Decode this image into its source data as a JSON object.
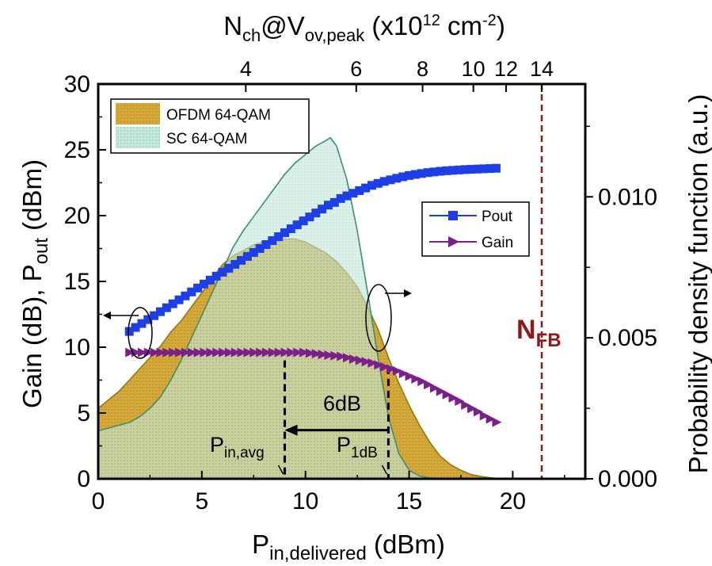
{
  "chart_data": {
    "type": "line",
    "x_axis": {
      "label_main": "P",
      "label_sub": "in,delivered",
      "label_unit": " (dBm)",
      "range": [
        0,
        23.5
      ],
      "ticks": [
        0,
        5,
        10,
        15,
        20
      ]
    },
    "y_axis_left": {
      "label_a": "Gain (dB), P",
      "label_sub": "out",
      "label_b": " (dBm)",
      "range": [
        0,
        30
      ],
      "ticks": [
        0,
        5,
        10,
        15,
        20,
        25,
        30
      ]
    },
    "y_axis_right": {
      "label": "Probability density function (a.u.)",
      "range": [
        0,
        0.014
      ],
      "ticks": [
        0.0,
        0.005,
        0.01
      ],
      "tick_labels": [
        "0.000",
        "0.005",
        "0.010"
      ]
    },
    "x_axis_top": {
      "label_n": "N",
      "label_n_sub": "ch",
      "label_at": "@V",
      "label_v_sub": "ov,peak",
      "label_unit_a": " (x10",
      "label_unit_exp": "12",
      "label_unit_b": " cm",
      "label_unit_exp2": "-2",
      "label_unit_c": ")",
      "ticks": [
        {
          "label": "4",
          "x": 7.12
        },
        {
          "label": "6",
          "x": 12.45
        },
        {
          "label": "8",
          "x": 15.65
        },
        {
          "label": "10",
          "x": 18.1
        },
        {
          "label": "12",
          "x": 19.68
        },
        {
          "label": "14",
          "x": 21.4
        }
      ]
    },
    "series": [
      {
        "name": "Pout",
        "color": "#1f3fe6",
        "marker": "square",
        "axis": "left",
        "x": [
          1.5,
          1.8,
          2.1,
          2.4,
          2.7,
          3.0,
          3.3,
          3.6,
          3.9,
          4.2,
          4.5,
          4.8,
          5.1,
          5.4,
          5.7,
          6.0,
          6.3,
          6.6,
          6.9,
          7.2,
          7.5,
          7.8,
          8.1,
          8.4,
          8.7,
          9.0,
          9.3,
          9.6,
          9.9,
          10.2,
          10.5,
          10.8,
          11.1,
          11.4,
          11.7,
          12.0,
          12.3,
          12.6,
          12.9,
          13.2,
          13.5,
          13.8,
          14.1,
          14.4,
          14.7,
          15.0,
          15.3,
          15.6,
          15.9,
          16.2,
          16.5,
          16.8,
          17.1,
          17.4,
          17.7,
          18.0,
          18.3,
          18.6,
          18.9,
          19.2
        ],
        "y": [
          11.2,
          11.5,
          11.8,
          12.1,
          12.4,
          12.7,
          13.0,
          13.3,
          13.6,
          13.9,
          14.2,
          14.5,
          14.8,
          15.1,
          15.4,
          15.7,
          16.0,
          16.3,
          16.6,
          16.9,
          17.2,
          17.5,
          17.8,
          18.1,
          18.4,
          18.7,
          19.0,
          19.3,
          19.6,
          19.9,
          20.2,
          20.5,
          20.8,
          21.0,
          21.3,
          21.5,
          21.7,
          21.9,
          22.1,
          22.3,
          22.45,
          22.6,
          22.72,
          22.84,
          22.95,
          23.05,
          23.13,
          23.2,
          23.27,
          23.32,
          23.37,
          23.41,
          23.44,
          23.47,
          23.5,
          23.52,
          23.54,
          23.56,
          23.58,
          23.6
        ]
      },
      {
        "name": "Gain",
        "color": "#7b1f8a",
        "marker": "triangle-right",
        "axis": "left",
        "x": [
          1.5,
          1.8,
          2.1,
          2.4,
          2.7,
          3.0,
          3.3,
          3.6,
          3.9,
          4.2,
          4.5,
          4.8,
          5.1,
          5.4,
          5.7,
          6.0,
          6.3,
          6.6,
          6.9,
          7.2,
          7.5,
          7.8,
          8.1,
          8.4,
          8.7,
          9.0,
          9.3,
          9.6,
          9.9,
          10.2,
          10.5,
          10.8,
          11.1,
          11.4,
          11.7,
          12.0,
          12.3,
          12.6,
          12.9,
          13.2,
          13.5,
          13.8,
          14.1,
          14.4,
          14.7,
          15.0,
          15.3,
          15.6,
          15.9,
          16.2,
          16.5,
          16.8,
          17.1,
          17.4,
          17.7,
          18.0,
          18.3,
          18.6,
          18.9,
          19.2
        ],
        "y": [
          9.6,
          9.6,
          9.6,
          9.6,
          9.6,
          9.6,
          9.6,
          9.6,
          9.6,
          9.6,
          9.6,
          9.6,
          9.6,
          9.6,
          9.6,
          9.6,
          9.6,
          9.6,
          9.6,
          9.6,
          9.6,
          9.6,
          9.6,
          9.6,
          9.6,
          9.6,
          9.6,
          9.6,
          9.6,
          9.55,
          9.5,
          9.45,
          9.4,
          9.35,
          9.3,
          9.2,
          9.1,
          9.0,
          8.9,
          8.8,
          8.65,
          8.5,
          8.35,
          8.2,
          8.0,
          7.8,
          7.6,
          7.4,
          7.15,
          6.9,
          6.65,
          6.4,
          6.15,
          5.9,
          5.6,
          5.35,
          5.1,
          4.8,
          4.55,
          4.3
        ]
      },
      {
        "name": "OFDM 64-QAM",
        "type": "area",
        "axis": "right",
        "color": "#d4a93a",
        "x": [
          0,
          0.5,
          1,
          1.5,
          2,
          2.5,
          3,
          3.5,
          4,
          4.5,
          5,
          5.5,
          6,
          6.5,
          7,
          7.5,
          8,
          8.5,
          9,
          9.5,
          10,
          10.5,
          11,
          11.5,
          12,
          12.5,
          13,
          13.5,
          14,
          14.5,
          15,
          15.5,
          16,
          16.5,
          17,
          17.5,
          18,
          18.5,
          19,
          19.5
        ],
        "y": [
          0.0025,
          0.0028,
          0.0031,
          0.0035,
          0.0039,
          0.0043,
          0.0047,
          0.0052,
          0.0056,
          0.0061,
          0.0066,
          0.0071,
          0.0076,
          0.0079,
          0.0081,
          0.0083,
          0.0084,
          0.0084,
          0.0085,
          0.0085,
          0.0084,
          0.0082,
          0.008,
          0.0077,
          0.0073,
          0.0068,
          0.0061,
          0.0053,
          0.0043,
          0.0034,
          0.0026,
          0.0019,
          0.0013,
          0.0008,
          0.0005,
          0.0003,
          0.00015,
          8e-05,
          3e-05,
          0.0
        ]
      },
      {
        "name": "SC 64-QAM",
        "type": "area",
        "axis": "right",
        "color": "#bfe3d6",
        "x": [
          0,
          0.5,
          1,
          1.5,
          2,
          2.5,
          3,
          3.5,
          4,
          4.5,
          5,
          5.5,
          6,
          6.5,
          7,
          7.5,
          8,
          8.5,
          9,
          9.5,
          10,
          10.5,
          11,
          11.2,
          11.5,
          12,
          12.5,
          13,
          13.5,
          14,
          14.5,
          15,
          15.5,
          16,
          16.5,
          17
        ],
        "y": [
          0.0017,
          0.0018,
          0.0019,
          0.002,
          0.0022,
          0.0025,
          0.0029,
          0.0035,
          0.0042,
          0.005,
          0.0058,
          0.0066,
          0.0074,
          0.0082,
          0.0088,
          0.0093,
          0.0098,
          0.0103,
          0.0108,
          0.0112,
          0.0115,
          0.0118,
          0.012,
          0.0121,
          0.0118,
          0.0106,
          0.0088,
          0.0066,
          0.0043,
          0.0022,
          0.0009,
          0.0003,
          0.0001,
          3e-05,
          1e-05,
          0.0
        ]
      }
    ],
    "legend_pdf": {
      "placement": "top-left",
      "entries": [
        "OFDM 64-QAM",
        "SC 64-QAM"
      ]
    },
    "legend_lines": {
      "placement": "right-center",
      "entries": [
        "Pout",
        "Gain"
      ]
    },
    "annotations": {
      "pin_avg": {
        "label_main": "P",
        "label_sub": "in,avg",
        "x": 9.0,
        "y_top": 9.0
      },
      "p1db": {
        "label_main": "P",
        "label_sub": "1dB",
        "x": 14.0,
        "y_top": 8.5
      },
      "delta": {
        "label": "6dB",
        "y": 3.7
      },
      "nfb": {
        "label_main": "N",
        "label_sub": "FB",
        "x": 21.4,
        "color": "#8b1a1a"
      }
    }
  }
}
